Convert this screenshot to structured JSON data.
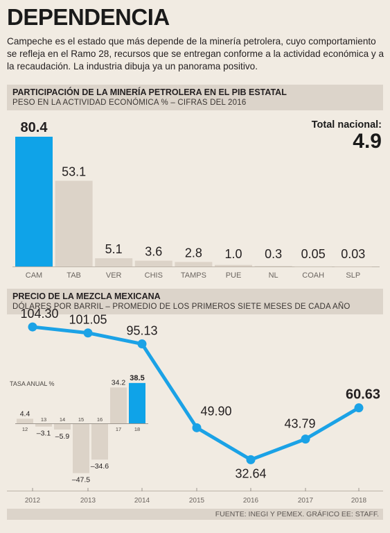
{
  "headline": "DEPENDENCIA",
  "intro": "Campeche es el estado que más depende de la minería petrolera, cuyo comportamiento se refleja en el Ramo 28, recursos que se entregan conforme a la actividad económica y a la recaudación. La industria dibuja ya un panorama positivo.",
  "section1": {
    "title": "PARTICIPACIÓN DE LA MINERÍA PETROLERA EN EL PIB ESTATAL",
    "subtitle": "PESO EN LA ACTIVIDAD ECONÓMICA % – CIFRAS DEL 2016"
  },
  "national_total": {
    "label": "Total nacional:",
    "value": "4.9"
  },
  "section2": {
    "title": "PRECIO DE LA MEZCLA MEXICANA",
    "subtitle": "DÓLARES POR BARRIL – PROMEDIO DE LOS PRIMEROS SIETE MESES DE CADA AÑO"
  },
  "source": "FUENTE: INEGI Y PEMEX. GRÁFICO EE: STAFF.",
  "colors": {
    "highlight": "#0fa3e8",
    "bar": "#dcd3c8",
    "line": "#1ba2e6",
    "text": "#231f20"
  },
  "chart_data": [
    {
      "type": "bar",
      "categories": [
        "CAM",
        "TAB",
        "VER",
        "CHIS",
        "TAMPS",
        "PUE",
        "NL",
        "COAH",
        "SLP"
      ],
      "values": [
        80.4,
        53.1,
        5.1,
        3.6,
        2.8,
        1.0,
        0.3,
        0.05,
        0.03
      ],
      "value_labels": [
        "80.4",
        "53.1",
        "5.1",
        "3.6",
        "2.8",
        "1.0",
        "0.3",
        "0.05",
        "0.03"
      ],
      "highlight": "CAM",
      "ylim": [
        0,
        80.4
      ]
    },
    {
      "type": "line",
      "x": [
        "2012",
        "2013",
        "2014",
        "2015",
        "2016",
        "2017",
        "2018"
      ],
      "values": [
        104.3,
        101.05,
        95.13,
        49.9,
        32.64,
        43.79,
        60.63
      ],
      "value_labels": [
        "104.30",
        "101.05",
        "95.13",
        "49.90",
        "32.64",
        "43.79",
        "60.63"
      ],
      "highlight_last": true
    },
    {
      "type": "bar",
      "title": "TASA ANUAL %",
      "categories": [
        "12",
        "13",
        "14",
        "15",
        "16",
        "17",
        "18"
      ],
      "values": [
        4.4,
        -3.1,
        -5.9,
        -47.5,
        -34.6,
        34.2,
        38.5
      ],
      "value_labels": [
        "4.4",
        "–3.1",
        "–5.9",
        "–47.5",
        "–34.6",
        "34.2",
        "38.5"
      ],
      "highlight": "18"
    }
  ]
}
